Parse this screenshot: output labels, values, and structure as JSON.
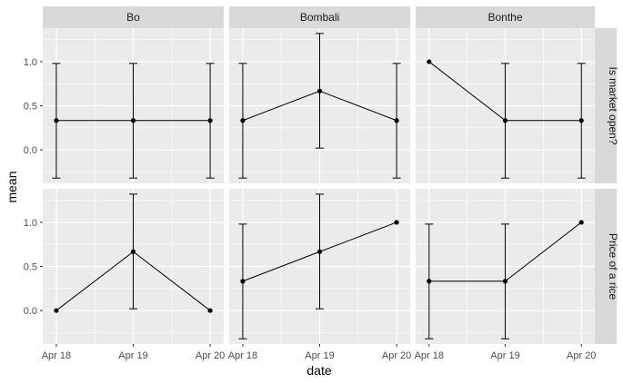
{
  "chart_data": {
    "type": "line",
    "xlabel": "date",
    "ylabel": "mean",
    "x_categories": [
      "Apr 18",
      "Apr 19",
      "Apr 20"
    ],
    "y_ticks": [
      0.0,
      0.5,
      1.0
    ],
    "y_tick_labels": [
      "0.0",
      "0.5",
      "1.0"
    ],
    "ylim": [
      -0.38,
      1.38
    ],
    "grid": true,
    "facet_columns": [
      "Bo",
      "Bombali",
      "Bonthe"
    ],
    "facet_rows": [
      "Is market open?",
      "Price of a rice"
    ],
    "panels": [
      {
        "column": "Bo",
        "row": "Is market open?",
        "mean": [
          0.333,
          0.333,
          0.333
        ],
        "lower": [
          -0.32,
          -0.32,
          -0.32
        ],
        "upper": [
          0.98,
          0.98,
          0.98
        ]
      },
      {
        "column": "Bombali",
        "row": "Is market open?",
        "mean": [
          0.333,
          0.667,
          0.333
        ],
        "lower": [
          -0.32,
          0.02,
          -0.32
        ],
        "upper": [
          0.98,
          1.32,
          0.98
        ]
      },
      {
        "column": "Bonthe",
        "row": "Is market open?",
        "mean": [
          1.0,
          0.333,
          0.333
        ],
        "lower": [
          1.0,
          -0.32,
          -0.32
        ],
        "upper": [
          1.0,
          0.98,
          0.98
        ]
      },
      {
        "column": "Bo",
        "row": "Price of a rice",
        "mean": [
          0.0,
          0.667,
          0.0
        ],
        "lower": [
          0.0,
          0.02,
          0.0
        ],
        "upper": [
          0.0,
          1.32,
          0.0
        ]
      },
      {
        "column": "Bombali",
        "row": "Price of a rice",
        "mean": [
          0.333,
          0.667,
          1.0
        ],
        "lower": [
          -0.32,
          0.02,
          1.0
        ],
        "upper": [
          0.98,
          1.32,
          1.0
        ]
      },
      {
        "column": "Bonthe",
        "row": "Price of a rice",
        "mean": [
          0.333,
          0.333,
          1.0
        ],
        "lower": [
          -0.32,
          -0.32,
          1.0
        ],
        "upper": [
          0.98,
          0.98,
          1.0
        ]
      }
    ],
    "colors": {
      "panel_background": "#ebebeb",
      "grid_line": "#ffffff",
      "strip_background": "#d9d9d9",
      "series": "#000000"
    }
  }
}
